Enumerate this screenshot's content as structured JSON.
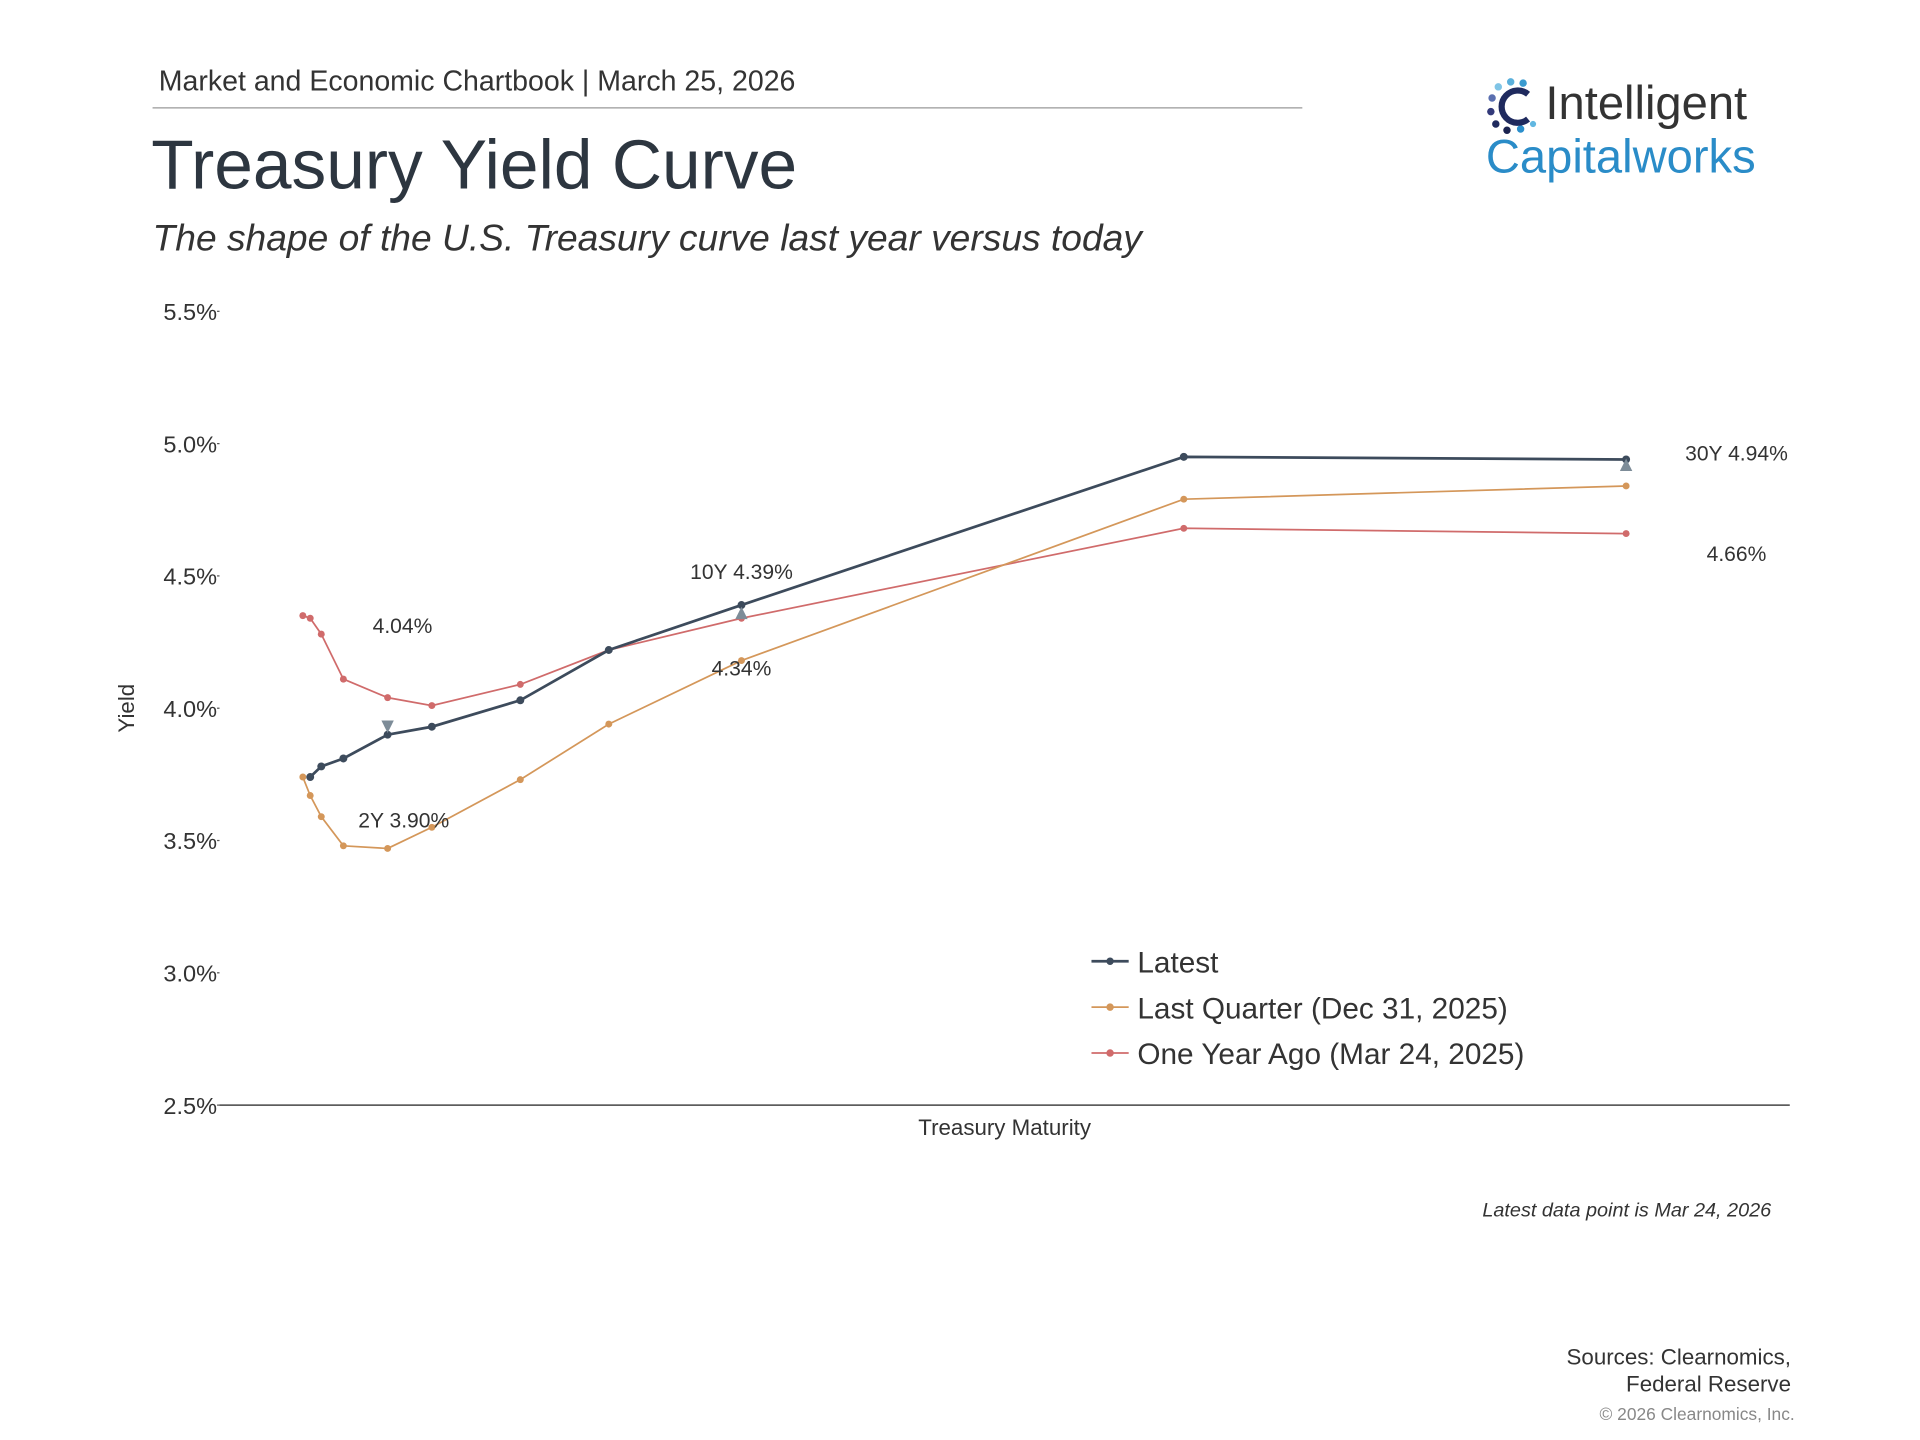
{
  "header": "Market and Economic Chartbook | March 25, 2026",
  "logo": {
    "line1": "Intelligent",
    "line2": "Capitalworks"
  },
  "chart_data": {
    "type": "line",
    "title": "Treasury Yield Curve",
    "subtitle": "The shape of the U.S. Treasury curve last year versus today",
    "x_label": "Treasury Maturity",
    "y_label": "Yield",
    "x": [
      0.0833,
      0.25,
      0.5,
      1,
      2,
      3,
      5,
      7,
      10,
      20,
      30
    ],
    "xlim": [
      -1.8,
      33.7
    ],
    "series": [
      {
        "name": "Latest",
        "color": "#3d4b5c",
        "values": [
          null,
          3.74,
          3.78,
          3.81,
          3.9,
          3.93,
          4.03,
          4.22,
          4.39,
          4.95,
          4.94
        ]
      },
      {
        "name": "Last Quarter (Dec 31, 2025)",
        "color": "#d4975a",
        "values": [
          3.74,
          3.67,
          3.59,
          3.48,
          3.47,
          3.55,
          3.73,
          3.94,
          4.18,
          4.79,
          4.84
        ]
      },
      {
        "name": "One Year Ago (Mar 24, 2025)",
        "color": "#d06b6b",
        "values": [
          4.35,
          4.34,
          4.28,
          4.11,
          4.04,
          4.01,
          4.09,
          4.22,
          4.34,
          4.68,
          4.66
        ]
      }
    ],
    "ylim": [
      2.5,
      5.5
    ],
    "yticks": [
      {
        "value": 2.5,
        "label": "2.5%"
      },
      {
        "value": 3.0,
        "label": "3.0%"
      },
      {
        "value": 3.5,
        "label": "3.5%"
      },
      {
        "value": 4.0,
        "label": "4.0%"
      },
      {
        "value": 4.5,
        "label": "4.5%"
      },
      {
        "value": 5.0,
        "label": "5.0%"
      },
      {
        "value": 5.5,
        "label": "5.5%"
      }
    ],
    "annotations": [
      {
        "text": "2Y 3.90%",
        "x": 2,
        "y": 3.9
      },
      {
        "text": "4.04%",
        "x": 2,
        "y": 4.04
      },
      {
        "text": "10Y 4.39%",
        "x": 10,
        "y": 4.39
      },
      {
        "text": "4.34%",
        "x": 10,
        "y": 4.34
      },
      {
        "text": "30Y 4.94%",
        "x": 30,
        "y": 4.94
      },
      {
        "text": "4.66%",
        "x": 30,
        "y": 4.66
      }
    ],
    "legend": "lower right",
    "grid": false,
    "note": "Latest data point is Mar 24, 2026",
    "sources": [
      "Sources: Clearnomics,",
      "Federal Reserve"
    ],
    "copyright": "© 2026 Clearnomics, Inc."
  }
}
